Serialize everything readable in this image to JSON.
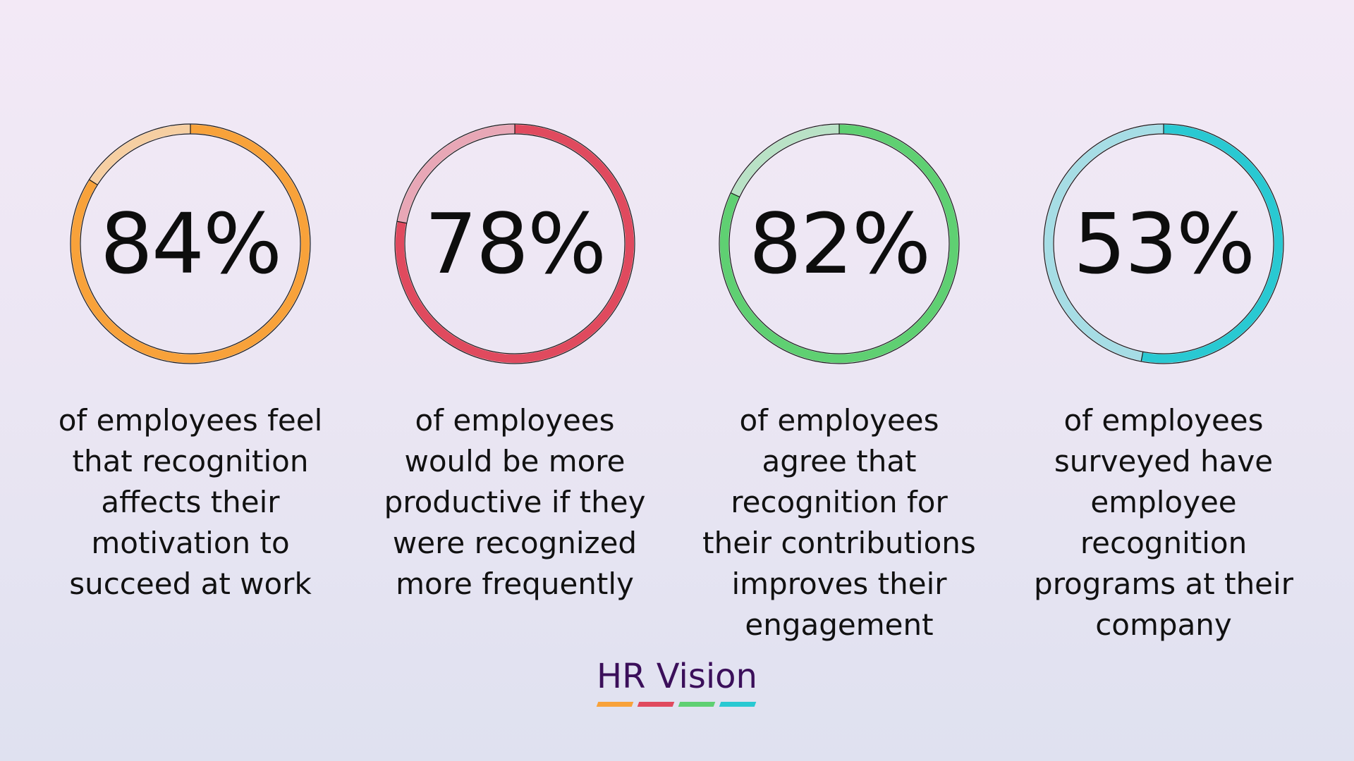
{
  "chart_data": [
    {
      "type": "pie",
      "value": 84,
      "label": "84%",
      "description": [
        "of employees feel",
        "that recognition",
        "affects their",
        "motivation to",
        "succeed at work"
      ],
      "color": "#f8a23a",
      "track_color": "#f6cfa2"
    },
    {
      "type": "pie",
      "value": 78,
      "label": "78%",
      "description": [
        "of employees",
        "would be more",
        "productive if they",
        "were recognized",
        "more frequently"
      ],
      "color": "#e04a5e",
      "track_color": "#e8a7b6"
    },
    {
      "type": "pie",
      "value": 82,
      "label": "82%",
      "description": [
        "of employees",
        "agree that",
        "recognition for",
        "their contributions",
        "improves their",
        "engagement"
      ],
      "color": "#5fd072",
      "track_color": "#b9e2c6"
    },
    {
      "type": "pie",
      "value": 53,
      "label": "53%",
      "description": [
        "of employees",
        "surveyed have",
        "employee",
        "recognition",
        "programs at their",
        "company"
      ],
      "color": "#29c9d2",
      "track_color": "#a6dde5"
    }
  ],
  "brand": {
    "name": "HR Vision",
    "bar_colors": [
      "#f8a23a",
      "#e04a5e",
      "#5fd072",
      "#29c9d2"
    ]
  }
}
